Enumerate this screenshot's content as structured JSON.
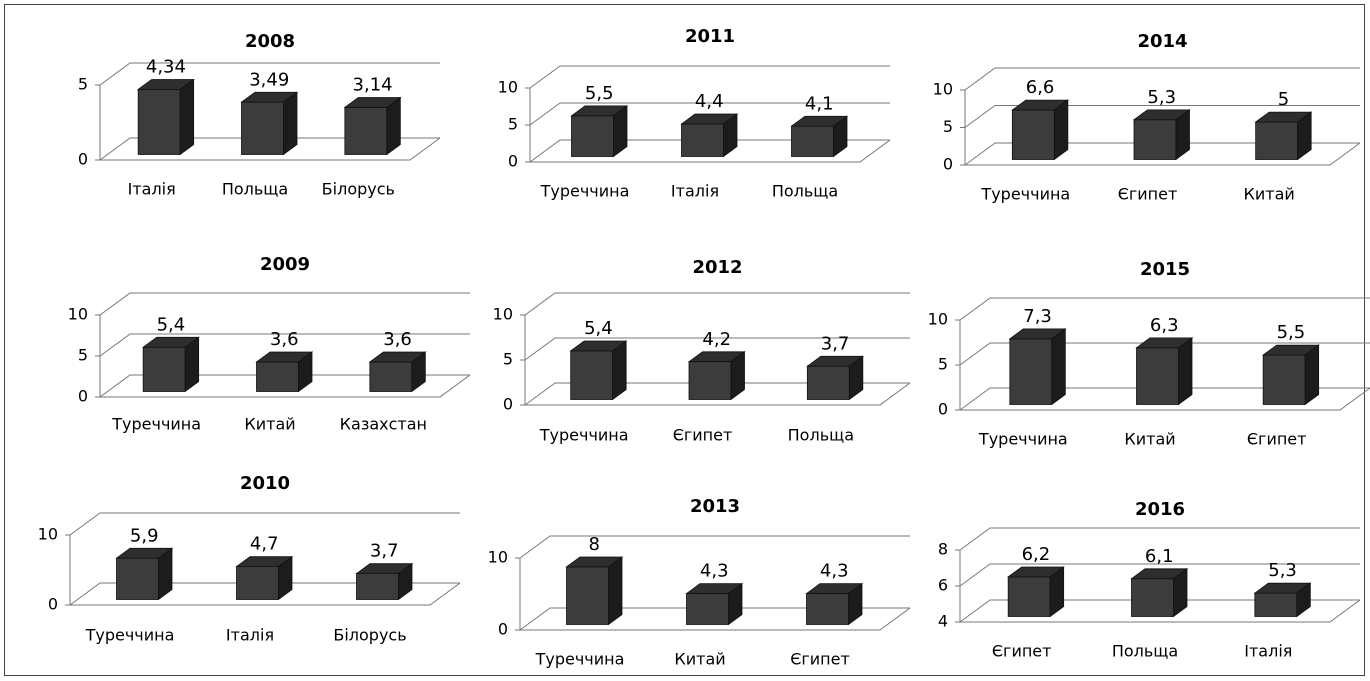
{
  "chart_data": [
    {
      "type": "bar",
      "title": "2008",
      "categories": [
        "Італія",
        "Польща",
        "Білорусь"
      ],
      "values": [
        4.34,
        3.49,
        3.14
      ],
      "value_labels": [
        "4,34",
        "3,49",
        "3,14"
      ],
      "ylim": [
        0,
        5
      ],
      "yticks": [
        0,
        5
      ],
      "color": "#3c3c3c"
    },
    {
      "type": "bar",
      "title": "2011",
      "categories": [
        "Туреччина",
        "Італія",
        "Польща"
      ],
      "values": [
        5.5,
        4.4,
        4.1
      ],
      "value_labels": [
        "5,5",
        "4,4",
        "4,1"
      ],
      "ylim": [
        0,
        10
      ],
      "yticks": [
        0,
        5,
        10
      ],
      "color": "#3c3c3c"
    },
    {
      "type": "bar",
      "title": "2014",
      "categories": [
        "Туреччина",
        "Єгипет",
        "Китай"
      ],
      "values": [
        6.6,
        5.3,
        5
      ],
      "value_labels": [
        "6,6",
        "5,3",
        "5"
      ],
      "ylim": [
        0,
        10
      ],
      "yticks": [
        0,
        5,
        10
      ],
      "color": "#3c3c3c"
    },
    {
      "type": "bar",
      "title": "2009",
      "categories": [
        "Туреччина",
        "Китай",
        "Казахстан"
      ],
      "values": [
        5.4,
        3.6,
        3.6
      ],
      "value_labels": [
        "5,4",
        "3,6",
        "3,6"
      ],
      "ylim": [
        0,
        10
      ],
      "yticks": [
        0,
        5,
        10
      ],
      "color": "#3c3c3c"
    },
    {
      "type": "bar",
      "title": "2012",
      "categories": [
        "Туреччина",
        "Єгипет",
        "Польща"
      ],
      "values": [
        5.4,
        4.2,
        3.7
      ],
      "value_labels": [
        "5,4",
        "4,2",
        "3,7"
      ],
      "ylim": [
        0,
        10
      ],
      "yticks": [
        0,
        5,
        10
      ],
      "color": "#3c3c3c"
    },
    {
      "type": "bar",
      "title": "2015",
      "categories": [
        "Туреччина",
        "Китай",
        "Єгипет"
      ],
      "values": [
        7.3,
        6.3,
        5.5
      ],
      "value_labels": [
        "7,3",
        "6,3",
        "5,5"
      ],
      "ylim": [
        0,
        10
      ],
      "yticks": [
        0,
        5,
        10
      ],
      "color": "#3c3c3c"
    },
    {
      "type": "bar",
      "title": "2010",
      "categories": [
        "Туреччина",
        "Італія",
        "Білорусь"
      ],
      "values": [
        5.9,
        4.7,
        3.7
      ],
      "value_labels": [
        "5,9",
        "4,7",
        "3,7"
      ],
      "ylim": [
        0,
        10
      ],
      "yticks": [
        0,
        10
      ],
      "color": "#3c3c3c"
    },
    {
      "type": "bar",
      "title": "2013",
      "categories": [
        "Туреччина",
        "Китай",
        "Єгипет"
      ],
      "values": [
        8,
        4.3,
        4.3
      ],
      "value_labels": [
        "8",
        "4,3",
        "4,3"
      ],
      "ylim": [
        0,
        10
      ],
      "yticks": [
        0,
        10
      ],
      "color": "#3c3c3c"
    },
    {
      "type": "bar",
      "title": "2016",
      "categories": [
        "Єгипет",
        "Польща",
        "Італія"
      ],
      "values": [
        6.2,
        6.1,
        5.3
      ],
      "value_labels": [
        "6,2",
        "6,1",
        "5,3"
      ],
      "ylim": [
        4,
        8
      ],
      "yticks": [
        4,
        6,
        8
      ],
      "color": "#3c3c3c"
    }
  ]
}
